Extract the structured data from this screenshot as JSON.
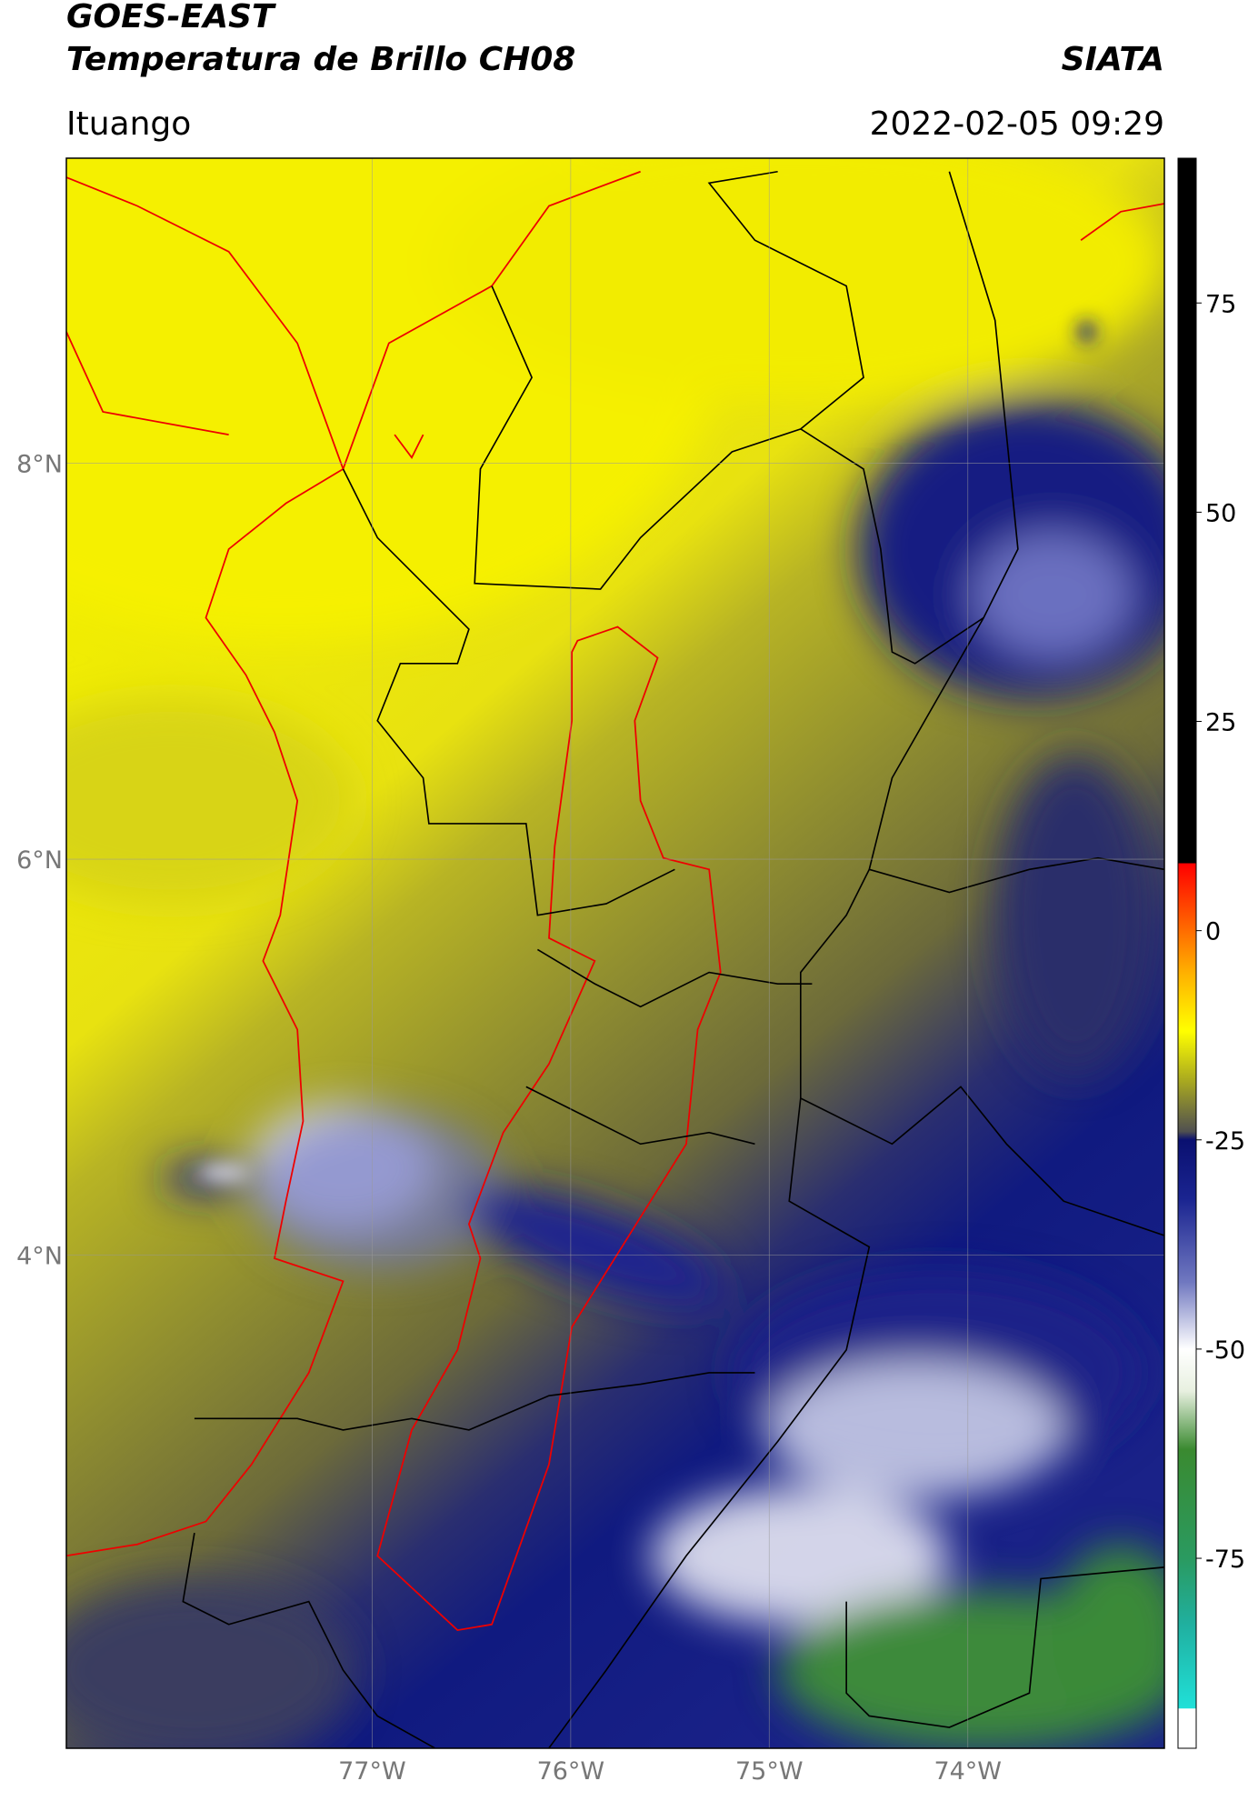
{
  "header": {
    "title": "GOES-EAST",
    "subtitle": "Temperatura de Brillo CH08",
    "agency": "SIATA",
    "location": "Ituango",
    "datetime": "2022-02-05 09:29"
  },
  "map": {
    "xlim": [
      -78.54,
      -73.01
    ],
    "ylim": [
      1.51,
      9.54
    ],
    "xticks": [
      {
        "value": -77,
        "label": "77°W"
      },
      {
        "value": -76,
        "label": "76°W"
      },
      {
        "value": -75,
        "label": "75°W"
      },
      {
        "value": -74,
        "label": "74°W"
      }
    ],
    "yticks": [
      {
        "value": 8,
        "label": "8°N"
      },
      {
        "value": 6,
        "label": "6°N"
      },
      {
        "value": 4,
        "label": "4°N"
      }
    ],
    "grid": true
  },
  "colorbar": {
    "clim": [
      -97.7,
      92.3
    ],
    "ticks": [
      75,
      50,
      25,
      0,
      -25,
      -50,
      -75
    ],
    "colormap": [
      {
        "value": -97.7,
        "color": "#ffffff"
      },
      {
        "value": -93,
        "color": "#ffffff"
      },
      {
        "value": -92.9,
        "color": "#20e0d8"
      },
      {
        "value": -83,
        "color": "#20b0a0"
      },
      {
        "value": -75,
        "color": "#2a9a60"
      },
      {
        "value": -62,
        "color": "#3a8a30"
      },
      {
        "value": -55,
        "color": "#e8f0e0"
      },
      {
        "value": -50,
        "color": "#ffffff"
      },
      {
        "value": -42,
        "color": "#7078c0"
      },
      {
        "value": -32,
        "color": "#1a2490"
      },
      {
        "value": -25,
        "color": "#0a1070"
      },
      {
        "value": -24,
        "color": "#505050"
      },
      {
        "value": -18,
        "color": "#a8a820"
      },
      {
        "value": -12,
        "color": "#ffff00"
      },
      {
        "value": -5,
        "color": "#ffb000"
      },
      {
        "value": 8,
        "color": "#ff0000"
      },
      {
        "value": 8.1,
        "color": "#000000"
      },
      {
        "value": 92.3,
        "color": "#000000"
      }
    ]
  }
}
